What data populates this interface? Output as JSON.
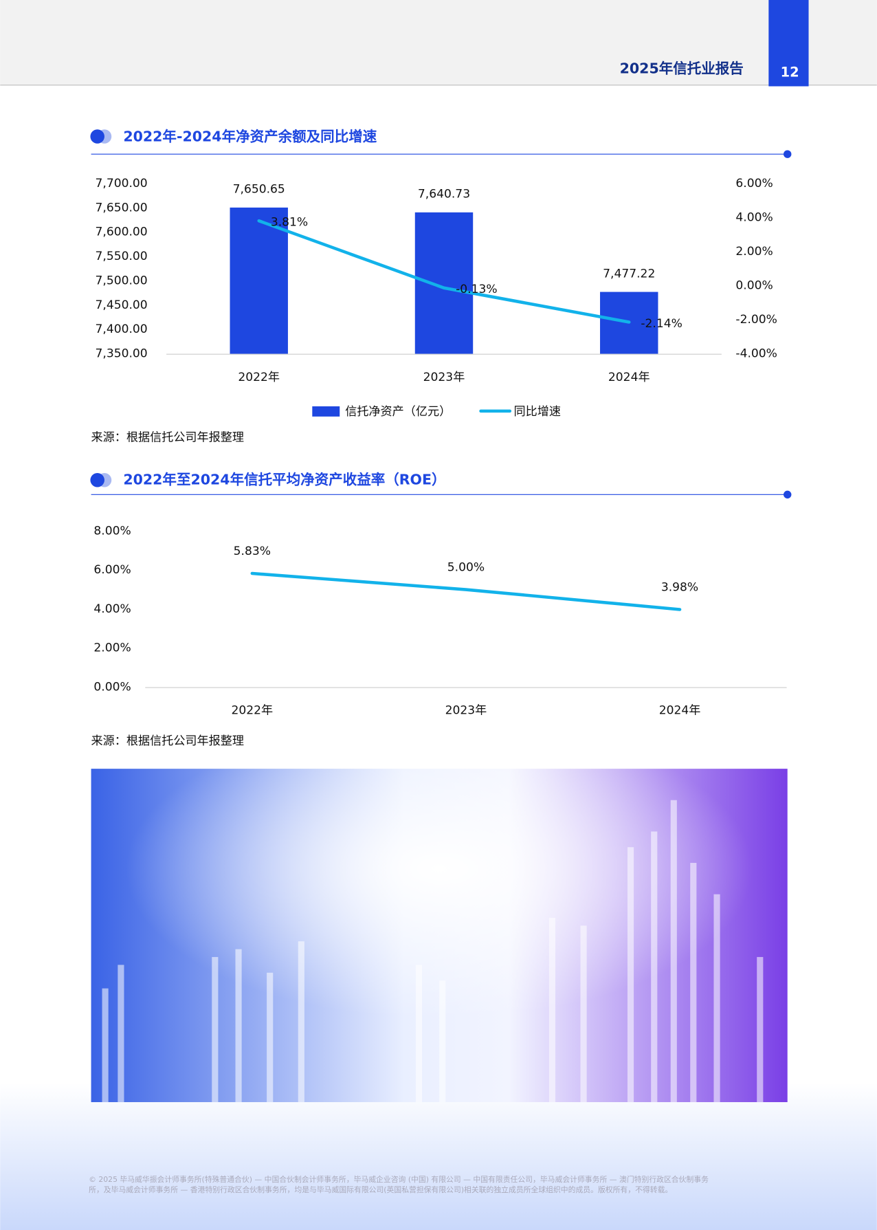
{
  "header": {
    "report_title": "2025年信托业报告",
    "page_number": "12"
  },
  "chart_data": [
    {
      "type": "bar",
      "title": "2022年-2024年净资产余额及同比增速",
      "categories": [
        "2022年",
        "2023年",
        "2024年"
      ],
      "series": [
        {
          "name": "信托净资产（亿元）",
          "type": "bar",
          "color": "#1e47e0",
          "values": [
            7650.65,
            7640.73,
            7477.22
          ],
          "value_labels": [
            "7,650.65",
            "7,640.73",
            "7,477.22"
          ]
        },
        {
          "name": "同比增速",
          "type": "line",
          "axis": "y2",
          "color": "#12b2ea",
          "values": [
            3.81,
            -0.13,
            -2.14
          ],
          "value_labels": [
            "3.81%",
            "-0.13%",
            "-2.14%"
          ]
        }
      ],
      "ylim": [
        7350,
        7700
      ],
      "yticks": [
        {
          "value": 7350,
          "label": "7,350.00"
        },
        {
          "value": 7400,
          "label": "7,400.00"
        },
        {
          "value": 7450,
          "label": "7,450.00"
        },
        {
          "value": 7500,
          "label": "7,500.00"
        },
        {
          "value": 7550,
          "label": "7,550.00"
        },
        {
          "value": 7600,
          "label": "7,600.00"
        },
        {
          "value": 7650,
          "label": "7,650.00"
        },
        {
          "value": 7700,
          "label": "7,700.00"
        }
      ],
      "y2lim": [
        -4,
        6
      ],
      "y2ticks": [
        {
          "value": -4,
          "label": "-4.00%"
        },
        {
          "value": -2,
          "label": "-2.00%"
        },
        {
          "value": 0,
          "label": "0.00%"
        },
        {
          "value": 2,
          "label": "2.00%"
        },
        {
          "value": 4,
          "label": "4.00%"
        },
        {
          "value": 6,
          "label": "6.00%"
        }
      ],
      "legend": "bottom",
      "source": "来源：根据信托公司年报整理"
    },
    {
      "type": "line",
      "title": "2022年至2024年信托平均净资产收益率（ROE）",
      "categories": [
        "2022年",
        "2023年",
        "2024年"
      ],
      "values": [
        5.83,
        5,
        3.98
      ],
      "value_labels": [
        "5.83%",
        "5.00%",
        "3.98%"
      ],
      "color": "#12b2ea",
      "ylim": [
        0,
        8
      ],
      "yticks": [
        {
          "value": 0,
          "label": "0.00%"
        },
        {
          "value": 2,
          "label": "2.00%"
        },
        {
          "value": 4,
          "label": "4.00%"
        },
        {
          "value": 6,
          "label": "6.00%"
        },
        {
          "value": 8,
          "label": "8.00%"
        }
      ],
      "source": "来源：根据信托公司年报整理"
    }
  ],
  "footer": [
    "© 2025 毕马威华振会计师事务所(特殊普通合伙) — 中国合伙制会计师事务所，毕马威企业咨询 (中国) 有限公司 — 中国有限责任公司，毕马威会计师事务所 — 澳门特别行政区合伙制事务",
    "所，及毕马威会计师事务所 — 香港特别行政区合伙制事务所，均是与毕马威国际有限公司(英国私营担保有限公司)相关联的独立成员所全球组织中的成员。版权所有，不得转载。"
  ]
}
